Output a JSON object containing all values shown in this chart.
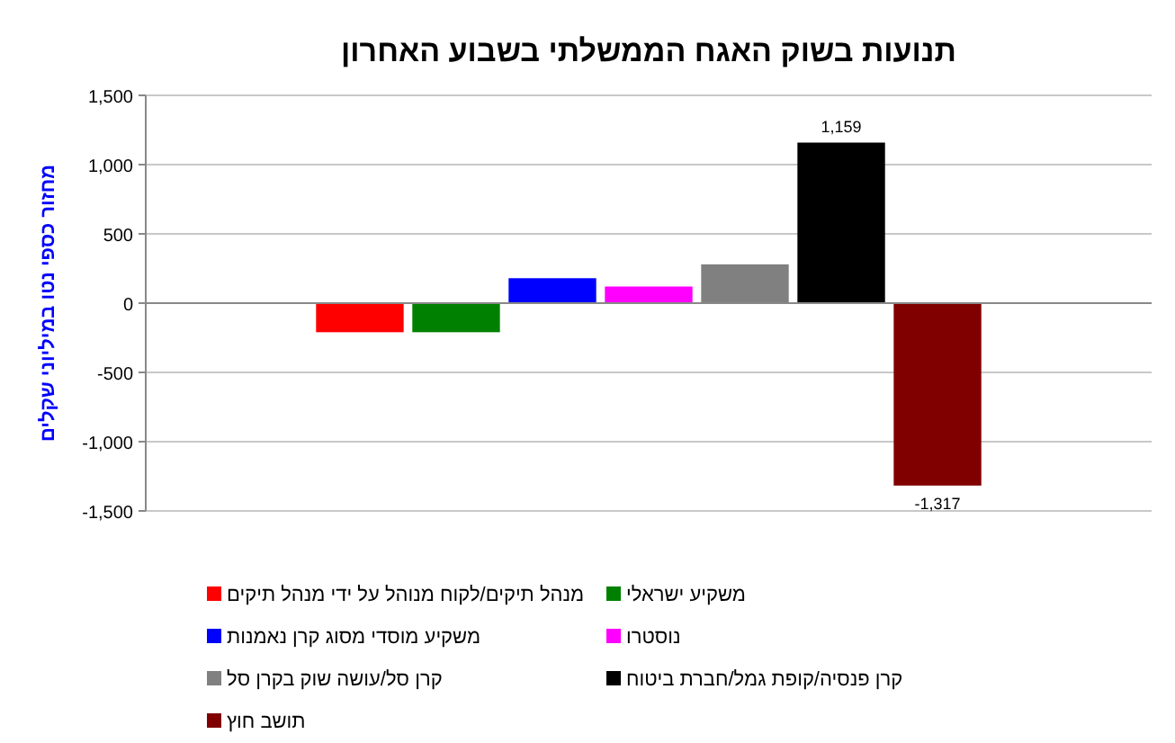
{
  "chart_data": {
    "type": "bar",
    "title": "תנועות בשוק האגח הממשלתי בשבוע האחרון",
    "ylabel": "מחזור כספי נטו במיליוני שקלים",
    "categories": [
      null
    ],
    "series": [
      {
        "name": "מנהל תיקים/לקוח מנוהל על ידי מנהל תיקים",
        "color": "#ff0000",
        "values": [
          -210
        ]
      },
      {
        "name": "משקיע ישראלי",
        "color": "#008000",
        "values": [
          -210
        ]
      },
      {
        "name": "משקיע מוסדי מסוג קרן נאמנות",
        "color": "#0000ff",
        "values": [
          180
        ]
      },
      {
        "name": "נוסטרו",
        "color": "#ff00ff",
        "values": [
          120
        ]
      },
      {
        "name": "קרן סל/עושה שוק בקרן סל",
        "color": "#808080",
        "values": [
          280
        ]
      },
      {
        "name": "קרן פנסיה/קופת גמל/חברת ביטוח",
        "color": "#000000",
        "values": [
          1159
        ],
        "value_labels": [
          "1,159"
        ]
      },
      {
        "name": "תושב חוץ",
        "color": "#800000",
        "values": [
          -1317
        ],
        "value_labels": [
          "-1,317"
        ]
      }
    ],
    "ylim": [
      -1500,
      1500
    ],
    "yticks": [
      {
        "value": -1500,
        "label": "-1,500"
      },
      {
        "value": -1000,
        "label": "-1,000"
      },
      {
        "value": -500,
        "label": "-500"
      },
      0,
      500,
      {
        "value": 1000,
        "label": "1,000"
      },
      {
        "value": 1500,
        "label": "1,500"
      }
    ],
    "grid": "y",
    "legend": "bottom"
  }
}
